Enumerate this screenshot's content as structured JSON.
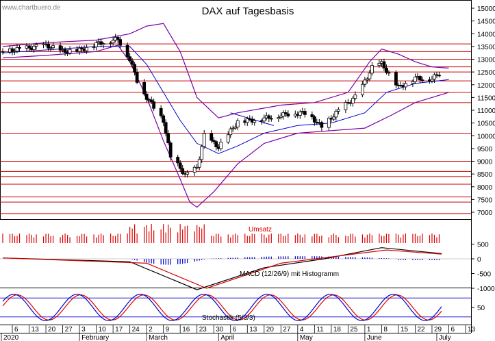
{
  "header": {
    "watermark": "www.chartbuero.de",
    "title": "DAX auf Tagesbasis"
  },
  "colors": {
    "candle": "#000000",
    "resistance_line": "#cc0000",
    "bollinger": "#7700aa",
    "sma": "#0000cc",
    "volume": "#dd0000",
    "macd_hist": "#0000cc",
    "macd_line": "#000000",
    "macd_signal": "#dd0000",
    "stoch_k": "#0000cc",
    "stoch_d": "#dd0000",
    "stoch_band": "#0000cc"
  },
  "labels": {
    "volume": "Umsatz",
    "macd": "MACD (12/26/9) mit Histogramm",
    "stochastic": "Stochastik (5/3/3)"
  },
  "chart_data": [
    {
      "type": "candlestick",
      "title": "DAX auf Tagesbasis",
      "ylabel": "",
      "ylim": [
        6800,
        15200
      ],
      "yticks": [
        7000,
        7500,
        8000,
        8500,
        9000,
        9500,
        10000,
        10500,
        11000,
        11500,
        12000,
        12500,
        13000,
        13500,
        14000,
        14500,
        15000
      ],
      "x_tick_labels": [
        "6",
        "13",
        "20",
        "27",
        "3",
        "10",
        "17",
        "24",
        "2",
        "9",
        "16",
        "23",
        "30",
        "6",
        "13",
        "20",
        "27",
        "4",
        "11",
        "18",
        "25",
        "1",
        "8",
        "15",
        "22",
        "29",
        "6",
        "13"
      ],
      "month_labels": [
        {
          "label": "2020",
          "at": "Jan"
        },
        {
          "label": "February",
          "at": "Feb 3"
        },
        {
          "label": "March",
          "at": "Mar 2"
        },
        {
          "label": "April",
          "at": "Apr 1"
        },
        {
          "label": "May",
          "at": "May 4"
        },
        {
          "label": "June",
          "at": "Jun 1"
        },
        {
          "label": "July",
          "at": "Jul 1"
        }
      ],
      "horizontal_levels": [
        13600,
        13300,
        13000,
        12700,
        12500,
        12150,
        11700,
        11300,
        10100,
        9000,
        8600,
        8400,
        8100,
        7600,
        7400,
        6950
      ],
      "approx_close_path": [
        {
          "date": "Jan 2",
          "close": 13300
        },
        {
          "date": "Jan 13",
          "close": 13450
        },
        {
          "date": "Jan 20",
          "close": 13550
        },
        {
          "date": "Jan 27",
          "close": 13300
        },
        {
          "date": "Feb 3",
          "close": 13350
        },
        {
          "date": "Feb 10",
          "close": 13600
        },
        {
          "date": "Feb 19",
          "close": 13790
        },
        {
          "date": "Feb 24",
          "close": 13000
        },
        {
          "date": "Feb 28",
          "close": 11900
        },
        {
          "date": "Mar 9",
          "close": 10600
        },
        {
          "date": "Mar 12",
          "close": 9150
        },
        {
          "date": "Mar 16",
          "close": 8750
        },
        {
          "date": "Mar 18",
          "close": 8440
        },
        {
          "date": "Mar 23",
          "close": 8740
        },
        {
          "date": "Mar 26",
          "close": 10000
        },
        {
          "date": "Apr 1",
          "close": 9550
        },
        {
          "date": "Apr 9",
          "close": 10560
        },
        {
          "date": "Apr 17",
          "close": 10630
        },
        {
          "date": "Apr 30",
          "close": 10860
        },
        {
          "date": "May 8",
          "close": 10900
        },
        {
          "date": "May 14",
          "close": 10340
        },
        {
          "date": "May 22",
          "close": 11070
        },
        {
          "date": "May 29",
          "close": 11590
        },
        {
          "date": "Jun 5",
          "close": 12850
        },
        {
          "date": "Jun 8",
          "close": 12820
        },
        {
          "date": "Jun 15",
          "close": 11900
        },
        {
          "date": "Jun 22",
          "close": 12260
        },
        {
          "date": "Jun 29",
          "close": 12230
        },
        {
          "date": "Jul 3",
          "close": 12530
        }
      ],
      "series": [
        {
          "name": "Bollinger upper",
          "color": "#7700aa"
        },
        {
          "name": "Bollinger lower",
          "color": "#7700aa"
        },
        {
          "name": "SMA",
          "color": "#0000cc"
        },
        {
          "name": "Trendline",
          "color": "#0000cc"
        }
      ]
    },
    {
      "type": "bar",
      "title": "Umsatz",
      "description": "Daily volume bars (red), peak around mid-March"
    },
    {
      "type": "line",
      "title": "MACD (12/26/9) mit Histogramm",
      "yticks": [
        500,
        0,
        -500,
        -1000
      ],
      "ylim": [
        -1200,
        700
      ],
      "series": [
        {
          "name": "MACD",
          "color": "#000000",
          "approx": [
            {
              "x": "Jan",
              "y": 30
            },
            {
              "x": "Feb 24",
              "y": -100
            },
            {
              "x": "Mar 23",
              "y": -1050
            },
            {
              "x": "Apr 20",
              "y": -300
            },
            {
              "x": "May 15",
              "y": 0
            },
            {
              "x": "Jun 8",
              "y": 380
            },
            {
              "x": "Jul 3",
              "y": 180
            }
          ]
        },
        {
          "name": "Signal",
          "color": "#dd0000",
          "approx": [
            {
              "x": "Jan",
              "y": 30
            },
            {
              "x": "Mar 2",
              "y": -150
            },
            {
              "x": "Mar 27",
              "y": -1000
            },
            {
              "x": "Apr 27",
              "y": -150
            },
            {
              "x": "Jun 10",
              "y": 300
            },
            {
              "x": "Jul 3",
              "y": 160
            }
          ]
        },
        {
          "name": "Histogram",
          "color": "#0000cc"
        }
      ]
    },
    {
      "type": "line",
      "title": "Stochastik (5/3/3)",
      "yticks": [
        50
      ],
      "ylim": [
        0,
        100
      ],
      "bands": [
        20,
        80
      ],
      "series": [
        {
          "name": "%K",
          "color": "#0000cc"
        },
        {
          "name": "%D",
          "color": "#dd0000"
        }
      ]
    }
  ]
}
